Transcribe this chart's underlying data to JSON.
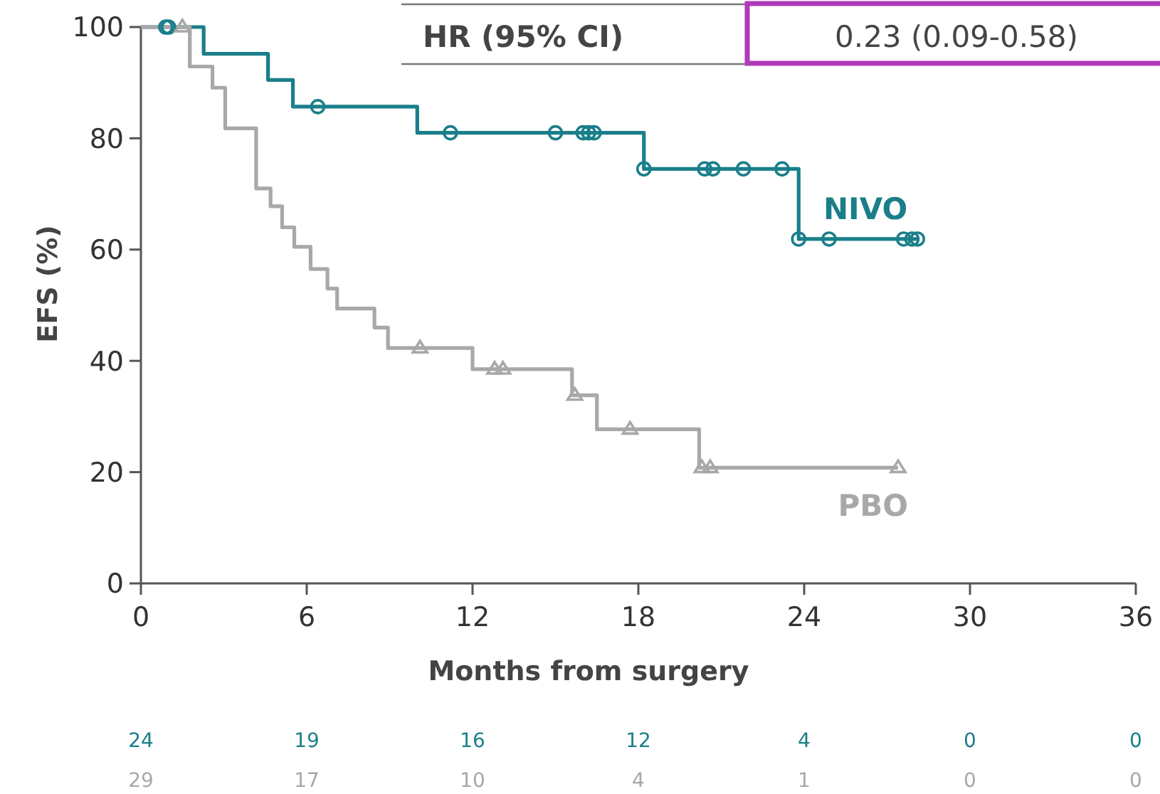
{
  "chart_data": {
    "type": "step",
    "xlabel": "Months from surgery",
    "ylabel": "EFS (%)",
    "xlim": [
      0,
      36
    ],
    "xticks": [
      0,
      6,
      12,
      18,
      24,
      30,
      36
    ],
    "ylim": [
      0,
      100
    ],
    "yticks": [
      0,
      20,
      40,
      60,
      80,
      100
    ],
    "grid": false,
    "legend": false,
    "series": [
      {
        "name": "NIVO",
        "color": "#1a7f8a",
        "x": [
          0,
          2.27,
          4.6,
          5.5,
          10.0,
          18.2,
          23.8,
          28.1
        ],
        "values": [
          100,
          95.2,
          90.5,
          85.7,
          81.0,
          74.5,
          61.9,
          61.9
        ]
      },
      {
        "name": "PBO",
        "color": "#a8a8a8",
        "x": [
          0,
          1.77,
          2.59,
          3.05,
          4.17,
          4.69,
          5.11,
          5.55,
          6.14,
          6.75,
          7.1,
          8.45,
          8.94,
          12.0,
          15.6,
          16.5,
          20.2,
          27.4
        ],
        "values": [
          100,
          92.9,
          89.1,
          81.8,
          71,
          67.8,
          64,
          60.5,
          56.5,
          53,
          49.4,
          46,
          42.3,
          38.5,
          33.8,
          27.7,
          20.8,
          20.8
        ]
      },
      {
        "type": "scatter",
        "color": "#1a7f8a",
        "marker": "circle",
        "x": [
          0.9,
          1.0,
          6.4,
          11.2,
          15.0,
          16.0,
          16.2,
          16.4,
          18.2,
          20.4,
          20.7,
          21.8,
          23.2,
          23.8,
          24.9,
          27.6,
          27.9,
          28.1
        ],
        "values": [
          100,
          100,
          85.7,
          81,
          81,
          81,
          81,
          81,
          74.5,
          74.5,
          74.5,
          74.5,
          74.5,
          61.9,
          61.9,
          61.9,
          61.9,
          61.9
        ]
      },
      {
        "type": "scatter",
        "color": "#a8a8a8",
        "marker": "triangle",
        "x": [
          1.5,
          10.1,
          12.8,
          13.1,
          15.7,
          17.7,
          20.3,
          20.6,
          27.4
        ],
        "values": [
          100,
          42.3,
          38.5,
          38.5,
          33.8,
          27.7,
          20.8,
          20.8,
          20.8
        ]
      }
    ],
    "annotations": [
      "HR (95% CI)",
      "0.23 (0.09-0.58)",
      "24",
      "19",
      "16",
      "12",
      "4",
      "0",
      "0",
      "29",
      "17",
      "10",
      "4",
      "1",
      "0",
      "0"
    ]
  }
}
